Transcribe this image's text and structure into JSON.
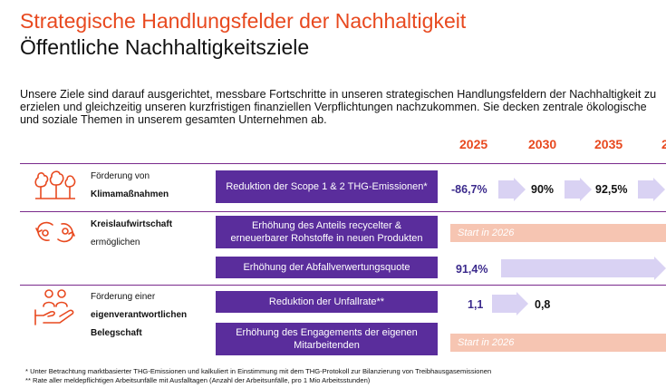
{
  "header": {
    "title": "Strategische Handlungsfelder der Nachhaltigkeit",
    "subtitle": "Öffentliche Nachhaltigkeitsziele",
    "intro": "Unsere Ziele sind darauf ausgerichtet, messbare Fortschritte in unseren strategischen Handlungsfeldern der Nachhaltigkeit zu erzielen und gleichzeitig unseren kurzfristigen finanziellen Verpflichtungen nachzukommen. Sie decken zentrale ökologische und soziale Themen in unserem gesamten Unternehmen ab."
  },
  "years": [
    "2025",
    "2030",
    "2035"
  ],
  "categories": {
    "climate": {
      "line1": "Förderung von",
      "line2": "Klimamaßnahmen",
      "icon": "trees-icon"
    },
    "circular": {
      "line1": "Kreislaufwirtschaft",
      "line2": "ermöglichen",
      "icon": "recycle-arrows-icon"
    },
    "workforce": {
      "line1": "Förderung einer",
      "line2": "eigenverantwortlichen",
      "line3": "Belegschaft",
      "icon": "people-hand-icon"
    }
  },
  "goals": {
    "scope": {
      "label": "Reduktion der Scope 1 & 2 THG-Emissionen*",
      "v2025": "-86,7%",
      "v2030": "90%",
      "v2035": "92,5%"
    },
    "recycled": {
      "label": "Erhöhung des Anteils recycelter & erneuerbarer Rohstoffe in neuen Produkten",
      "start": "Start in 2026"
    },
    "waste": {
      "label": "Erhöhung der Abfallverwertungsquote",
      "v2025": "91,4%"
    },
    "accident": {
      "label": "Reduktion der Unfallrate**",
      "v2025": "1,1",
      "v2030": "0,8"
    },
    "engagement": {
      "label": "Erhöhung des Engagements der eigenen Mitarbeitenden",
      "start": "Start in 2026"
    }
  },
  "footnotes": [
    "* Unter Betrachtung marktbasierter THG-Emissionen und kalkuliert in Einstimmung mit dem THG-Protokoll zur Bilanzierung von Treibhausgasemissionen",
    "** Rate aller meldepflichtigen Arbeitsunfälle mit Ausfalltagen (Anzahl der Arbeitsunfälle, pro 1 Mio Arbeitsstunden)"
  ],
  "colors": {
    "accent": "#e8491f",
    "goal_box": "#5a2d9c",
    "arrow": "#d9d2f3",
    "start_bar": "#f6c5b2",
    "separator": "#7a2a8c"
  }
}
